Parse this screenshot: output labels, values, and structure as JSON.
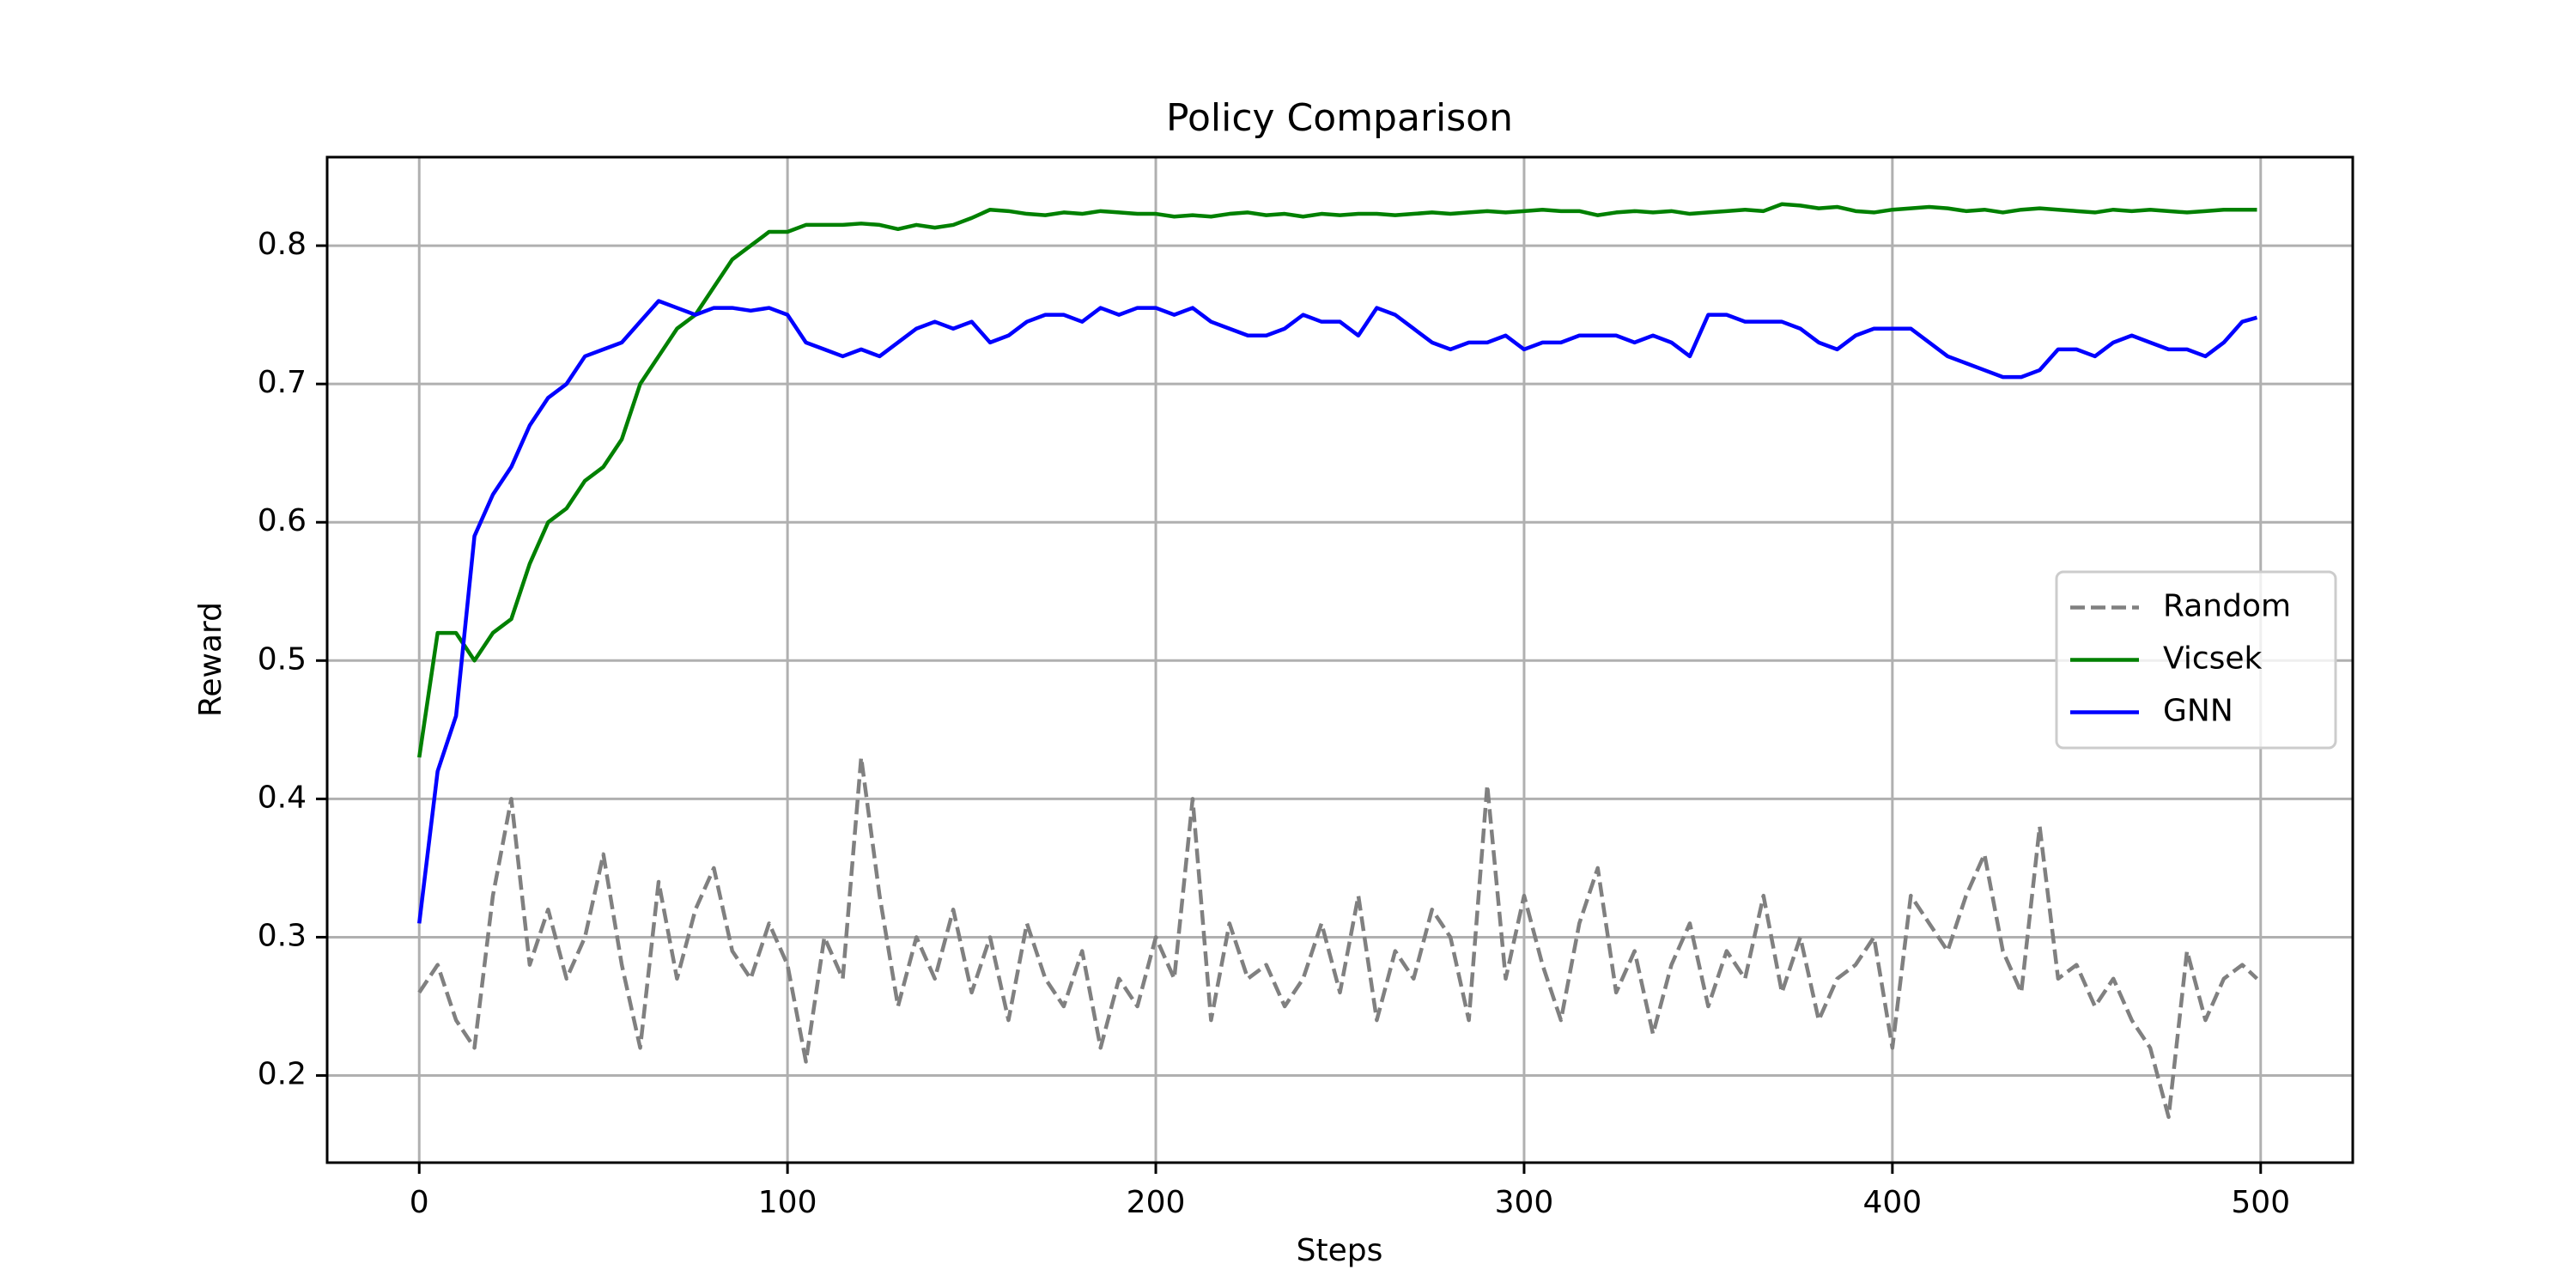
{
  "chart_data": {
    "type": "line",
    "title": "Policy Comparison",
    "x_label": "Steps",
    "y_label": "Reward",
    "x": [
      0,
      5,
      10,
      15,
      20,
      25,
      30,
      35,
      40,
      45,
      50,
      55,
      60,
      65,
      70,
      75,
      80,
      85,
      90,
      95,
      100,
      105,
      110,
      115,
      120,
      125,
      130,
      135,
      140,
      145,
      150,
      155,
      160,
      165,
      170,
      175,
      180,
      185,
      190,
      195,
      200,
      205,
      210,
      215,
      220,
      225,
      230,
      235,
      240,
      245,
      250,
      255,
      260,
      265,
      270,
      275,
      280,
      285,
      290,
      295,
      300,
      305,
      310,
      315,
      320,
      325,
      330,
      335,
      340,
      345,
      350,
      355,
      360,
      365,
      370,
      375,
      380,
      385,
      390,
      395,
      400,
      405,
      410,
      415,
      420,
      425,
      430,
      435,
      440,
      445,
      450,
      455,
      460,
      465,
      470,
      475,
      480,
      485,
      490,
      495,
      499
    ],
    "series": [
      {
        "name": "Random",
        "color": "#808080",
        "dashed": true,
        "values": [
          0.26,
          0.28,
          0.24,
          0.22,
          0.33,
          0.4,
          0.28,
          0.32,
          0.27,
          0.3,
          0.36,
          0.28,
          0.22,
          0.34,
          0.27,
          0.32,
          0.35,
          0.29,
          0.27,
          0.31,
          0.28,
          0.21,
          0.3,
          0.27,
          0.43,
          0.33,
          0.25,
          0.3,
          0.27,
          0.32,
          0.26,
          0.3,
          0.24,
          0.31,
          0.27,
          0.25,
          0.29,
          0.22,
          0.27,
          0.25,
          0.3,
          0.27,
          0.4,
          0.24,
          0.31,
          0.27,
          0.28,
          0.25,
          0.27,
          0.31,
          0.26,
          0.33,
          0.24,
          0.29,
          0.27,
          0.32,
          0.3,
          0.24,
          0.41,
          0.27,
          0.33,
          0.28,
          0.24,
          0.31,
          0.35,
          0.26,
          0.29,
          0.23,
          0.28,
          0.31,
          0.25,
          0.29,
          0.27,
          0.33,
          0.26,
          0.3,
          0.24,
          0.27,
          0.28,
          0.3,
          0.22,
          0.33,
          0.31,
          0.29,
          0.33,
          0.36,
          0.29,
          0.26,
          0.38,
          0.27,
          0.28,
          0.25,
          0.27,
          0.24,
          0.22,
          0.17,
          0.29,
          0.24,
          0.27,
          0.28,
          0.27
        ]
      },
      {
        "name": "Vicsek",
        "color": "#008000",
        "dashed": false,
        "values": [
          0.43,
          0.52,
          0.52,
          0.5,
          0.52,
          0.53,
          0.57,
          0.6,
          0.61,
          0.63,
          0.64,
          0.66,
          0.7,
          0.72,
          0.74,
          0.75,
          0.77,
          0.79,
          0.8,
          0.81,
          0.81,
          0.815,
          0.815,
          0.815,
          0.816,
          0.815,
          0.812,
          0.815,
          0.813,
          0.815,
          0.82,
          0.826,
          0.825,
          0.823,
          0.822,
          0.824,
          0.823,
          0.825,
          0.824,
          0.823,
          0.823,
          0.821,
          0.822,
          0.821,
          0.823,
          0.824,
          0.822,
          0.823,
          0.821,
          0.823,
          0.822,
          0.823,
          0.823,
          0.822,
          0.823,
          0.824,
          0.823,
          0.824,
          0.825,
          0.824,
          0.825,
          0.826,
          0.825,
          0.825,
          0.822,
          0.824,
          0.825,
          0.824,
          0.825,
          0.823,
          0.824,
          0.825,
          0.826,
          0.825,
          0.83,
          0.829,
          0.827,
          0.828,
          0.825,
          0.824,
          0.826,
          0.827,
          0.828,
          0.827,
          0.825,
          0.826,
          0.824,
          0.826,
          0.827,
          0.826,
          0.825,
          0.824,
          0.826,
          0.825,
          0.826,
          0.825,
          0.824,
          0.825,
          0.826,
          0.826,
          0.826
        ]
      },
      {
        "name": "GNN",
        "color": "#0000ff",
        "dashed": false,
        "values": [
          0.31,
          0.42,
          0.46,
          0.59,
          0.62,
          0.64,
          0.67,
          0.69,
          0.7,
          0.72,
          0.725,
          0.73,
          0.745,
          0.76,
          0.755,
          0.75,
          0.755,
          0.755,
          0.753,
          0.755,
          0.75,
          0.73,
          0.725,
          0.72,
          0.725,
          0.72,
          0.73,
          0.74,
          0.745,
          0.74,
          0.745,
          0.73,
          0.735,
          0.745,
          0.75,
          0.75,
          0.745,
          0.755,
          0.75,
          0.755,
          0.755,
          0.75,
          0.755,
          0.745,
          0.74,
          0.735,
          0.735,
          0.74,
          0.75,
          0.745,
          0.745,
          0.735,
          0.755,
          0.75,
          0.74,
          0.73,
          0.725,
          0.73,
          0.73,
          0.735,
          0.725,
          0.73,
          0.73,
          0.735,
          0.735,
          0.735,
          0.73,
          0.735,
          0.73,
          0.72,
          0.75,
          0.75,
          0.745,
          0.745,
          0.745,
          0.74,
          0.73,
          0.725,
          0.735,
          0.74,
          0.74,
          0.74,
          0.73,
          0.72,
          0.715,
          0.71,
          0.705,
          0.705,
          0.71,
          0.725,
          0.725,
          0.72,
          0.73,
          0.735,
          0.73,
          0.725,
          0.725,
          0.72,
          0.73,
          0.745,
          0.748
        ]
      }
    ],
    "xlim": [
      -25,
      525
    ],
    "ylim": [
      0.137,
      0.864
    ],
    "xticks": [
      0,
      100,
      200,
      300,
      400,
      500
    ],
    "yticks": [
      0.2,
      0.3,
      0.4,
      0.5,
      0.6,
      0.7,
      0.8
    ],
    "grid": true,
    "legend": "center right"
  }
}
